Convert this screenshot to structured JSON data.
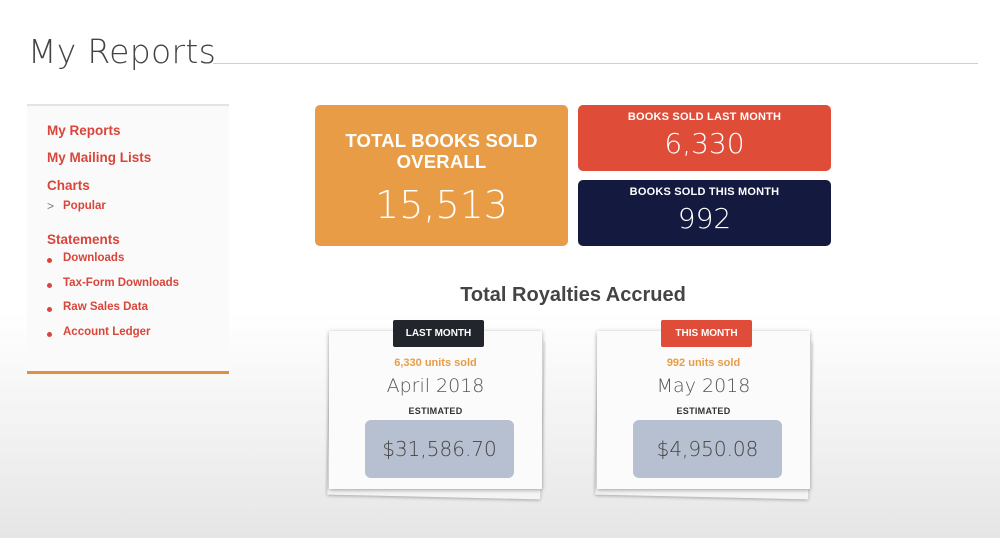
{
  "page": {
    "title": "My Reports"
  },
  "sidebar": {
    "links": [
      {
        "label": "My Reports"
      },
      {
        "label": "My Mailing Lists"
      }
    ],
    "charts": {
      "label": "Charts",
      "items": [
        {
          "label": "Popular",
          "marker": ">"
        }
      ]
    },
    "statements": {
      "label": "Statements",
      "items": [
        {
          "label": "Downloads"
        },
        {
          "label": "Tax-Form Downloads"
        },
        {
          "label": "Raw Sales Data"
        },
        {
          "label": "Account Ledger"
        }
      ]
    }
  },
  "stats": {
    "total": {
      "label_line1": "TOTAL BOOKS SOLD",
      "label_line2": "OVERALL",
      "value": "15,513"
    },
    "last_month": {
      "label": "BOOKS SOLD LAST MONTH",
      "value": "6,330"
    },
    "this_month": {
      "label": "BOOKS SOLD THIS MONTH",
      "value": "992"
    }
  },
  "royalties": {
    "title": "Total Royalties Accrued",
    "last_month": {
      "badge": "LAST MONTH",
      "units": "6,330 units sold",
      "month": "April 2018",
      "estimated": "ESTIMATED",
      "amount": "$31,586.70"
    },
    "this_month": {
      "badge": "THIS MONTH",
      "units": "992 units sold",
      "month": "May 2018",
      "estimated": "ESTIMATED",
      "amount": "$4,950.08"
    }
  },
  "colors": {
    "accent_red": "#df4d38",
    "accent_orange": "#e89c45",
    "navy": "#14193f",
    "link_red": "#d9453a"
  }
}
